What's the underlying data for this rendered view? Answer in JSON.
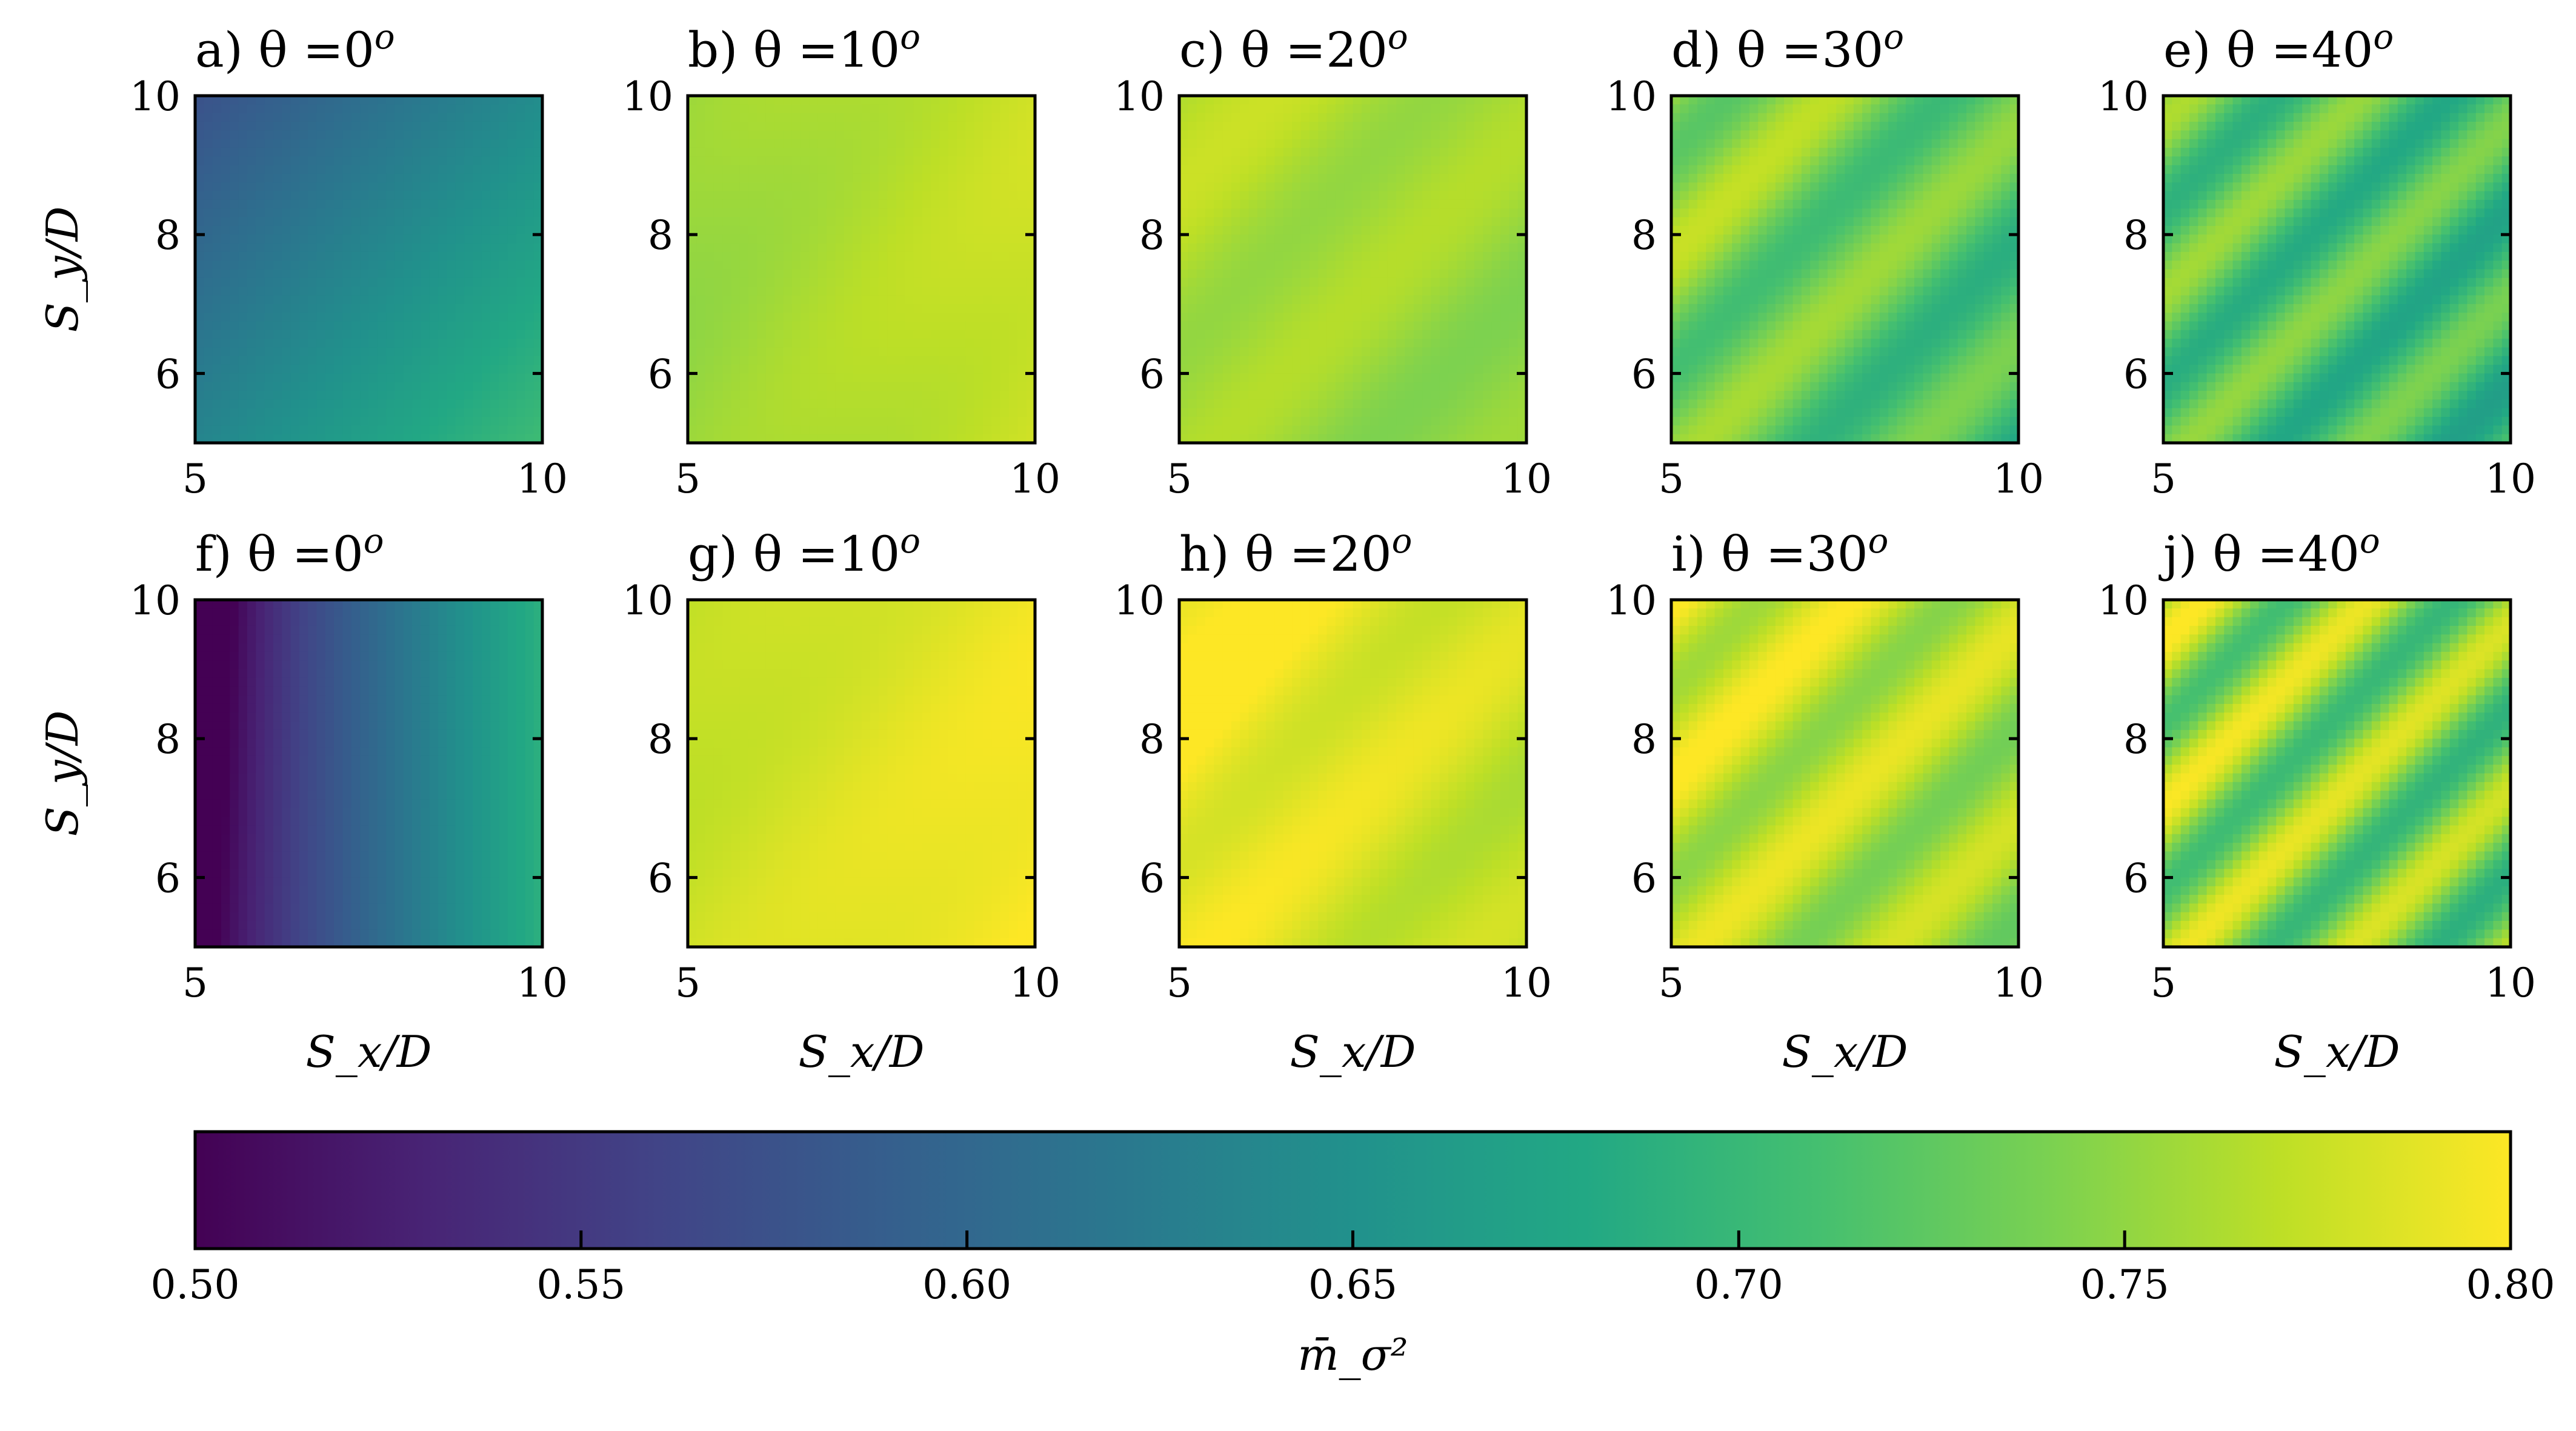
{
  "chart_data": {
    "type": "heatmap",
    "panels": [
      {
        "id": "a",
        "title": "a) θ =0",
        "superscript": "o",
        "theta": 0,
        "row": 0,
        "col": 0,
        "field": {
          "base": 0.64,
          "gx": 0.035,
          "gy": -0.03,
          "band_amp": 0.0,
          "band_cycles": 0
        }
      },
      {
        "id": "b",
        "title": "b) θ =10",
        "superscript": "o",
        "theta": 10,
        "row": 0,
        "col": 1,
        "field": {
          "base": 0.765,
          "gx": 0.012,
          "gy": 0.0,
          "band_amp": 0.004,
          "band_cycles": 1
        }
      },
      {
        "id": "c",
        "title": "c) θ =20",
        "superscript": "o",
        "theta": 20,
        "row": 0,
        "col": 2,
        "field": {
          "base": 0.758,
          "gx": -0.006,
          "gy": 0.006,
          "band_amp": 0.01,
          "band_cycles": 1.2
        }
      },
      {
        "id": "d",
        "title": "d) θ =30",
        "superscript": "o",
        "theta": 30,
        "row": 0,
        "col": 3,
        "field": {
          "base": 0.73,
          "gx": -0.015,
          "gy": 0.01,
          "band_amp": 0.03,
          "band_cycles": 1.6
        }
      },
      {
        "id": "e",
        "title": "e) θ =40",
        "superscript": "o",
        "theta": 40,
        "row": 0,
        "col": 4,
        "field": {
          "base": 0.715,
          "gx": -0.01,
          "gy": 0.005,
          "band_amp": 0.035,
          "band_cycles": 2.0
        }
      },
      {
        "id": "f",
        "title": "f) θ =0",
        "superscript": "o",
        "theta": 0,
        "row": 1,
        "col": 0,
        "field": {
          "base": 0.6,
          "gx": 0.09,
          "gy": 0.0,
          "band_amp": 0.0,
          "band_cycles": 0,
          "left_dip": 0.06
        }
      },
      {
        "id": "g",
        "title": "g) θ =10",
        "superscript": "o",
        "theta": 10,
        "row": 1,
        "col": 1,
        "field": {
          "base": 0.785,
          "gx": 0.012,
          "gy": -0.004,
          "band_amp": 0.004,
          "band_cycles": 1
        }
      },
      {
        "id": "h",
        "title": "h) θ =20",
        "superscript": "o",
        "theta": 20,
        "row": 1,
        "col": 2,
        "field": {
          "base": 0.785,
          "gx": -0.012,
          "gy": 0.006,
          "band_amp": 0.012,
          "band_cycles": 1.3
        }
      },
      {
        "id": "i",
        "title": "i) θ =30",
        "superscript": "o",
        "theta": 30,
        "row": 1,
        "col": 3,
        "field": {
          "base": 0.768,
          "gx": -0.01,
          "gy": 0.008,
          "band_amp": 0.025,
          "band_cycles": 1.8
        }
      },
      {
        "id": "j",
        "title": "j) θ =40",
        "superscript": "o",
        "theta": 40,
        "row": 1,
        "col": 4,
        "field": {
          "base": 0.745,
          "gx": -0.01,
          "gy": 0.004,
          "band_amp": 0.045,
          "band_cycles": 2.1
        }
      }
    ],
    "x_ticks": [
      "5",
      "10"
    ],
    "y_ticks": [
      "6",
      "8",
      "10"
    ],
    "xlim": [
      5,
      10
    ],
    "ylim": [
      5,
      10
    ],
    "xlabel": "S_x/D",
    "ylabel": "S_y/D",
    "colorbar": {
      "label": "m̄_σ²",
      "range": [
        0.5,
        0.8
      ],
      "ticks": [
        "0.50",
        "0.55",
        "0.60",
        "0.65",
        "0.70",
        "0.75",
        "0.80"
      ],
      "colormap": "viridis"
    }
  }
}
